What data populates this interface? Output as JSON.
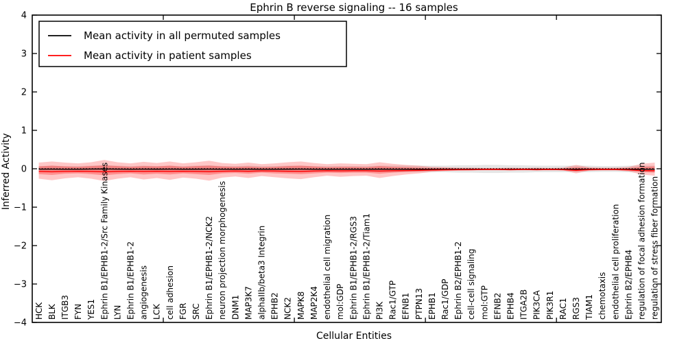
{
  "figure": {
    "title": "Ephrin B reverse signaling -- 16 samples",
    "xlabel": "Cellular Entities",
    "ylabel": "Inferred Activity"
  },
  "legend": {
    "entries": [
      {
        "label": "Mean activity in all permuted samples",
        "color": "#000000"
      },
      {
        "label": "Mean activity in patient samples",
        "color": "#ff0000"
      }
    ],
    "position": "upper left"
  },
  "colors": {
    "permuted_line": "#000000",
    "patient_line": "#ff0000",
    "permuted_band": "rgba(0,0,0,0.10)",
    "patient_band_outer": "rgba(255,0,0,0.22)",
    "patient_band_inner": "rgba(255,0,0,0.28)",
    "frame": "#000000",
    "background": "#ffffff"
  },
  "chart_data": {
    "type": "line",
    "title": "Ephrin B reverse signaling -- 16 samples",
    "xlabel": "Cellular Entities",
    "ylabel": "Inferred Activity",
    "ylim": [
      -4,
      4
    ],
    "yticks": [
      -4,
      -3,
      -2,
      -1,
      0,
      1,
      2,
      3,
      4
    ],
    "yticklabels": [
      "−4",
      "−3",
      "−2",
      "−1",
      "0",
      "1",
      "2",
      "3",
      "4"
    ],
    "xtick_positions": [
      10,
      20,
      30,
      40
    ],
    "grid": false,
    "legend_position": "upper left",
    "categories": [
      "HCK",
      "BLK",
      "ITGB3",
      "FYN",
      "YES1",
      "Ephrin B1/EPHB1-2/Src Family Kinases",
      "LYN",
      "Ephrin B1/EPHB1-2",
      "angiogenesis",
      "LCK",
      "cell adhesion",
      "FGR",
      "SRC",
      "Ephrin B1/EPHB1-2/NCK2",
      "neuron projection morphogenesis",
      "DNM1",
      "MAP3K7",
      "alphaIIb/beta3 Integrin",
      "EPHB2",
      "NCK2",
      "MAPK8",
      "MAP2K4",
      "endothelial cell migration",
      "mol:GDP",
      "Ephrin B1/EPHB1-2/RGS3",
      "Ephrin B1/EPHB1-2/Tiam1",
      "PI3K",
      "Rac1/GTP",
      "EFNB1",
      "PTPN13",
      "EPHB1",
      "Rac1/GDP",
      "Ephrin B2/EPHB1-2",
      "cell-cell signaling",
      "mol:GTP",
      "EFNB2",
      "EPHB4",
      "ITGA2B",
      "PIK3CA",
      "PIK3R1",
      "RAC1",
      "RGS3",
      "TIAM1",
      "chemotaxis",
      "endothelial cell proliferation",
      "Ephrin B2/EPHB4",
      "regulation of focal adhesion formation",
      "regulation of stress fiber formation"
    ],
    "series": [
      {
        "name": "Mean activity in all permuted samples",
        "color": "#000000",
        "style": "solid",
        "values": [
          -0.01,
          -0.01,
          -0.012,
          -0.012,
          -0.008,
          -0.005,
          -0.01,
          -0.012,
          -0.01,
          -0.011,
          -0.01,
          -0.012,
          -0.011,
          -0.01,
          -0.012,
          -0.012,
          -0.011,
          -0.012,
          -0.012,
          -0.011,
          -0.01,
          -0.012,
          -0.013,
          -0.012,
          -0.012,
          -0.013,
          -0.011,
          -0.012,
          -0.013,
          -0.013,
          -0.014,
          -0.014,
          -0.014,
          -0.014,
          -0.015,
          -0.015,
          -0.014,
          -0.014,
          -0.014,
          -0.014,
          -0.014,
          -0.012,
          -0.014,
          -0.015,
          -0.015,
          -0.014,
          -0.012,
          -0.012
        ]
      },
      {
        "name": "Permuted zero reference (dotted)",
        "color": "#000000",
        "style": "dotted",
        "values": [
          0,
          0,
          0,
          0,
          0,
          0,
          0,
          0,
          0,
          0,
          0,
          0,
          0,
          0,
          0,
          0,
          0,
          0,
          0,
          0,
          0,
          0,
          0,
          0,
          0,
          0,
          0,
          0,
          0,
          0,
          0,
          0,
          0,
          0,
          0,
          0,
          0,
          0,
          0,
          0,
          0,
          0,
          0,
          0,
          0,
          0,
          0,
          0
        ]
      },
      {
        "name": "Mean activity in patient samples",
        "color": "#ff0000",
        "style": "solid",
        "values": [
          -0.07,
          -0.08,
          -0.07,
          -0.065,
          -0.07,
          -0.08,
          -0.07,
          -0.065,
          -0.07,
          -0.065,
          -0.07,
          -0.065,
          -0.07,
          -0.075,
          -0.065,
          -0.06,
          -0.065,
          -0.055,
          -0.06,
          -0.065,
          -0.07,
          -0.06,
          -0.05,
          -0.055,
          -0.05,
          -0.05,
          -0.06,
          -0.05,
          -0.045,
          -0.04,
          -0.035,
          -0.03,
          -0.025,
          -0.025,
          -0.02,
          -0.02,
          -0.025,
          -0.02,
          -0.025,
          -0.02,
          -0.025,
          -0.04,
          -0.025,
          -0.02,
          -0.02,
          -0.03,
          -0.045,
          -0.05
        ]
      }
    ],
    "bands": [
      {
        "name": "permuted-samples-band",
        "fill": "rgba(0,0,0,0.10)",
        "upper": [
          0.07,
          0.08,
          0.07,
          0.07,
          0.08,
          0.09,
          0.08,
          0.07,
          0.08,
          0.07,
          0.08,
          0.07,
          0.08,
          0.09,
          0.07,
          0.07,
          0.08,
          0.07,
          0.07,
          0.08,
          0.08,
          0.07,
          0.07,
          0.07,
          0.07,
          0.07,
          0.08,
          0.08,
          0.08,
          0.08,
          0.08,
          0.08,
          0.09,
          0.09,
          0.1,
          0.1,
          0.09,
          0.09,
          0.08,
          0.08,
          0.08,
          0.08,
          0.08,
          0.07,
          0.07,
          0.08,
          0.08,
          0.08
        ],
        "lower": [
          -0.08,
          -0.09,
          -0.08,
          -0.08,
          -0.09,
          -0.1,
          -0.09,
          -0.08,
          -0.09,
          -0.08,
          -0.09,
          -0.08,
          -0.09,
          -0.1,
          -0.08,
          -0.08,
          -0.09,
          -0.08,
          -0.08,
          -0.09,
          -0.09,
          -0.08,
          -0.08,
          -0.08,
          -0.08,
          -0.08,
          -0.09,
          -0.09,
          -0.09,
          -0.09,
          -0.09,
          -0.09,
          -0.1,
          -0.1,
          -0.11,
          -0.11,
          -0.1,
          -0.1,
          -0.09,
          -0.09,
          -0.09,
          -0.09,
          -0.09,
          -0.08,
          -0.08,
          -0.09,
          -0.09,
          -0.09
        ]
      },
      {
        "name": "patient-samples-band-outer",
        "fill": "rgba(255,0,0,0.22)",
        "upper": [
          0.16,
          0.19,
          0.16,
          0.14,
          0.17,
          0.23,
          0.17,
          0.14,
          0.18,
          0.15,
          0.19,
          0.14,
          0.17,
          0.21,
          0.15,
          0.13,
          0.16,
          0.12,
          0.14,
          0.17,
          0.19,
          0.15,
          0.12,
          0.14,
          0.13,
          0.12,
          0.17,
          0.13,
          0.1,
          0.08,
          0.05,
          0.04,
          0.03,
          0.03,
          0.02,
          0.02,
          0.03,
          0.02,
          0.03,
          0.02,
          0.03,
          0.1,
          0.04,
          0.03,
          0.03,
          0.05,
          0.13,
          0.16
        ],
        "lower": [
          -0.26,
          -0.3,
          -0.25,
          -0.22,
          -0.26,
          -0.32,
          -0.26,
          -0.22,
          -0.28,
          -0.24,
          -0.29,
          -0.23,
          -0.26,
          -0.31,
          -0.23,
          -0.2,
          -0.24,
          -0.19,
          -0.22,
          -0.25,
          -0.27,
          -0.22,
          -0.18,
          -0.21,
          -0.19,
          -0.18,
          -0.24,
          -0.19,
          -0.15,
          -0.12,
          -0.08,
          -0.06,
          -0.05,
          -0.04,
          -0.03,
          -0.03,
          -0.04,
          -0.03,
          -0.04,
          -0.03,
          -0.04,
          -0.12,
          -0.05,
          -0.04,
          -0.04,
          -0.07,
          -0.15,
          -0.18
        ]
      },
      {
        "name": "patient-samples-band-inner",
        "fill": "rgba(255,0,0,0.28)",
        "upper": [
          0.06,
          0.08,
          0.06,
          0.05,
          0.07,
          0.09,
          0.07,
          0.05,
          0.07,
          0.06,
          0.08,
          0.05,
          0.07,
          0.08,
          0.06,
          0.05,
          0.06,
          0.04,
          0.05,
          0.07,
          0.08,
          0.06,
          0.04,
          0.05,
          0.05,
          0.04,
          0.07,
          0.05,
          0.04,
          0.03,
          0.02,
          0.02,
          0.01,
          0.01,
          0.01,
          0.01,
          0.01,
          0.01,
          0.01,
          0.01,
          0.01,
          0.04,
          0.02,
          0.01,
          0.01,
          0.02,
          0.05,
          0.06
        ],
        "lower": [
          -0.14,
          -0.16,
          -0.13,
          -0.12,
          -0.14,
          -0.17,
          -0.14,
          -0.12,
          -0.15,
          -0.13,
          -0.15,
          -0.12,
          -0.14,
          -0.16,
          -0.12,
          -0.11,
          -0.13,
          -0.1,
          -0.12,
          -0.13,
          -0.14,
          -0.12,
          -0.1,
          -0.11,
          -0.1,
          -0.1,
          -0.13,
          -0.1,
          -0.08,
          -0.07,
          -0.05,
          -0.04,
          -0.03,
          -0.03,
          -0.02,
          -0.02,
          -0.03,
          -0.02,
          -0.03,
          -0.02,
          -0.03,
          -0.07,
          -0.03,
          -0.03,
          -0.03,
          -0.04,
          -0.08,
          -0.1
        ]
      }
    ]
  }
}
